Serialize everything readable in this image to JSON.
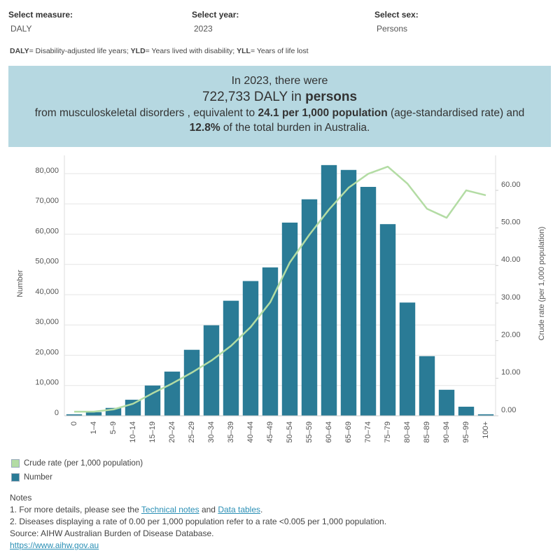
{
  "filters": [
    {
      "label": "Select measure:",
      "value": "DALY"
    },
    {
      "label": "Select year:",
      "value": "2023"
    },
    {
      "label": "Select sex:",
      "value": "Persons"
    }
  ],
  "definitions": [
    {
      "text": "DALY",
      "bold": true
    },
    {
      "text": "= Disability-adjusted life years; ",
      "bold": false
    },
    {
      "text": "YLD",
      "bold": true
    },
    {
      "text": "= Years lived with disability; ",
      "bold": false
    },
    {
      "text": "YLL",
      "bold": true
    },
    {
      "text": "= Years of life lost",
      "bold": false
    }
  ],
  "banner": {
    "lines": [
      [
        {
          "text": "In 2023, there were",
          "bold": false
        }
      ],
      [
        {
          "text": "722,733 DALY in ",
          "bold": false
        },
        {
          "text": "persons",
          "bold": true
        }
      ],
      [
        {
          "text": "from musculoskeletal disorders , equivalent to ",
          "bold": false
        },
        {
          "text": "24.1 per 1,000 population",
          "bold": true
        },
        {
          "text": " (age-standardised rate) and",
          "bold": false
        }
      ],
      [
        {
          "text": "12.8%",
          "bold": true
        },
        {
          "text": " of the total burden in Australia.",
          "bold": false
        }
      ]
    ]
  },
  "chart_data": {
    "type": "bar",
    "y_label": "Number",
    "y2_label": "Crude rate (per 1,000 population)",
    "categories": [
      "0",
      "1–4",
      "5–9",
      "10–14",
      "15–19",
      "20–24",
      "25–29",
      "30–34",
      "35–39",
      "40–44",
      "45–49",
      "50–54",
      "55–59",
      "60–64",
      "65–69",
      "70–74",
      "75–79",
      "80–84",
      "85–89",
      "90–94",
      "95–99",
      "100+"
    ],
    "series": [
      {
        "name": "Crude rate (per 1,000 population)",
        "type": "line",
        "axis": "y2",
        "color": "#b3dca4",
        "values": [
          1.1,
          1.1,
          1.7,
          3.2,
          6.0,
          8.6,
          11.5,
          14.7,
          18.6,
          23.6,
          30.2,
          40.8,
          48.2,
          54.9,
          60.7,
          64.4,
          66.3,
          61.8,
          55.1,
          52.7,
          60.0,
          58.7
        ]
      },
      {
        "name": "Number",
        "type": "bar",
        "color": "#2a7b96",
        "values": [
          500,
          1200,
          2600,
          5300,
          10000,
          14600,
          21800,
          29900,
          38000,
          44500,
          49000,
          63800,
          71500,
          82800,
          81200,
          75600,
          63300,
          37400,
          19700,
          8600,
          3000,
          500
        ]
      }
    ],
    "ylim": [
      0,
      86000
    ],
    "yticks": [
      0,
      {
        "value": 10000,
        "label": "10,000"
      },
      {
        "value": 20000,
        "label": "20,000"
      },
      {
        "value": 30000,
        "label": "30,000"
      },
      {
        "value": 40000,
        "label": "40,000"
      },
      {
        "value": 50000,
        "label": "50,000"
      },
      {
        "value": 60000,
        "label": "60,000"
      },
      {
        "value": 70000,
        "label": "70,000"
      },
      {
        "value": 80000,
        "label": "80,000"
      }
    ],
    "y2lim": [
      0,
      69.3
    ],
    "y2ticks": [
      {
        "value": 0,
        "label": "0.00"
      },
      {
        "value": 10,
        "label": "10.00"
      },
      {
        "value": 20,
        "label": "20.00"
      },
      {
        "value": 30,
        "label": "30.00"
      },
      {
        "value": 40,
        "label": "40.00"
      },
      {
        "value": 50,
        "label": "50.00"
      },
      {
        "value": 60,
        "label": "60.00"
      }
    ],
    "grid": true
  },
  "notes": [
    [
      {
        "text": "Notes",
        "link": false
      }
    ],
    [
      {
        "text": "1. For more details, please see the ",
        "link": false
      },
      {
        "text": "Technical notes",
        "link": true
      },
      {
        "text": " and ",
        "link": false
      },
      {
        "text": "Data tables",
        "link": true
      },
      {
        "text": ".",
        "link": false
      }
    ],
    [
      {
        "text": "2. Diseases displaying a rate of 0.00 per 1,000 population refer to a rate <0.005 per 1,000 population.",
        "link": false
      }
    ],
    [
      {
        "text": "Source: AIHW Australian Burden of Disease Database.",
        "link": false
      }
    ],
    [
      {
        "text": "https://www.aihw.gov.au",
        "link": true
      }
    ]
  ]
}
